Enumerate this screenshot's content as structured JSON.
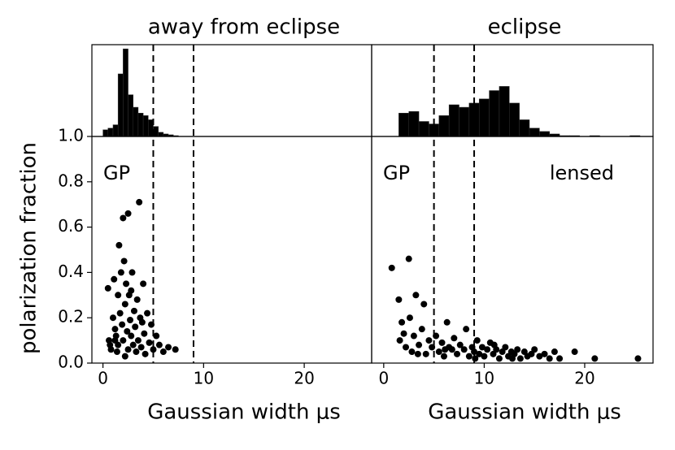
{
  "chart_data": [
    {
      "type": "scatter",
      "title": "away from eclipse",
      "xlabel": "Gaussian width μs",
      "ylabel": "polarization fraction",
      "xlim": [
        -1.1,
        26.7
      ],
      "xticks": [
        0,
        10,
        20
      ],
      "ylim": [
        0,
        1
      ],
      "yticks": [
        0.0,
        0.2,
        0.4,
        0.6,
        0.8,
        1.0
      ],
      "vlines": [
        5,
        9
      ],
      "annotations": [
        "GP"
      ],
      "color": "#000000",
      "histogram": {
        "bins": [
          0,
          0.5,
          1,
          1.5,
          2,
          2.5,
          3,
          3.5,
          4,
          4.5,
          5,
          5.5,
          6,
          6.5,
          7,
          7.5
        ],
        "counts": [
          8,
          10,
          14,
          75,
          105,
          50,
          35,
          28,
          25,
          20,
          12,
          5,
          3,
          2,
          1
        ],
        "ylim": [
          0,
          110
        ]
      },
      "x": [
        0.5,
        0.6,
        0.7,
        0.8,
        1.0,
        1.1,
        1.2,
        1.3,
        1.4,
        1.5,
        1.5,
        1.6,
        1.7,
        1.8,
        1.9,
        2.0,
        2.0,
        2.1,
        2.2,
        2.2,
        2.3,
        2.4,
        2.5,
        2.5,
        2.6,
        2.7,
        2.8,
        2.9,
        3.0,
        3.1,
        3.2,
        3.3,
        3.4,
        3.5,
        3.6,
        3.7,
        3.8,
        4.0,
        4.1,
        4.2,
        4.4,
        4.6,
        4.8,
        5.0,
        5.3,
        5.6,
        6.0,
        6.5,
        7.2,
        1.2,
        2.8,
        3.9
      ],
      "values": [
        0.33,
        0.1,
        0.08,
        0.06,
        0.2,
        0.37,
        0.15,
        0.12,
        0.05,
        0.3,
        0.08,
        0.52,
        0.22,
        0.4,
        0.17,
        0.64,
        0.1,
        0.45,
        0.26,
        0.03,
        0.35,
        0.14,
        0.66,
        0.06,
        0.3,
        0.19,
        0.12,
        0.4,
        0.08,
        0.23,
        0.16,
        0.05,
        0.28,
        0.1,
        0.71,
        0.2,
        0.07,
        0.35,
        0.13,
        0.04,
        0.22,
        0.09,
        0.17,
        0.06,
        0.12,
        0.08,
        0.05,
        0.07,
        0.06,
        0.1,
        0.32,
        0.18
      ]
    },
    {
      "type": "scatter",
      "title": "eclipse",
      "xlabel": "Gaussian width μs",
      "xlim": [
        -1.2,
        26.8
      ],
      "xticks": [
        0,
        10,
        20
      ],
      "ylim": [
        0,
        1
      ],
      "vlines": [
        5,
        9
      ],
      "annotations": [
        "GP",
        "lensed"
      ],
      "color": "#000000",
      "histogram": {
        "bins": [
          1.5,
          2.5,
          3.5,
          4.5,
          5.5,
          6.5,
          7.5,
          8.5,
          9.5,
          10.5,
          11.5,
          12.5,
          13.5,
          14.5,
          15.5,
          16.5,
          17.5,
          18.5,
          19.5,
          20.5,
          21.5,
          22.5,
          23.5,
          24.5,
          25.5
        ],
        "counts": [
          28,
          30,
          18,
          15,
          25,
          38,
          35,
          40,
          45,
          55,
          60,
          40,
          20,
          10,
          6,
          3,
          1,
          1,
          0,
          1,
          0,
          0,
          0,
          1
        ],
        "ylim": [
          0,
          110
        ]
      },
      "x": [
        0.8,
        1.5,
        1.6,
        1.8,
        2.0,
        2.2,
        2.5,
        2.6,
        2.8,
        3.0,
        3.2,
        3.5,
        3.8,
        4.0,
        4.2,
        4.5,
        4.8,
        5.2,
        5.5,
        5.8,
        6.0,
        6.3,
        6.5,
        6.8,
        7.0,
        7.3,
        7.6,
        8.0,
        8.2,
        8.5,
        8.8,
        9.0,
        9.3,
        9.5,
        9.8,
        10.0,
        10.3,
        10.6,
        10.9,
        11.2,
        11.5,
        11.8,
        12.1,
        12.4,
        12.7,
        13.0,
        13.3,
        13.6,
        14.0,
        14.3,
        14.7,
        15.0,
        15.5,
        16.0,
        16.5,
        17.0,
        17.5,
        19.0,
        21.0,
        25.3,
        9.1,
        11.0,
        12.8,
        6.1,
        3.4
      ],
      "values": [
        0.42,
        0.28,
        0.1,
        0.18,
        0.13,
        0.07,
        0.46,
        0.2,
        0.05,
        0.12,
        0.3,
        0.08,
        0.15,
        0.26,
        0.04,
        0.1,
        0.07,
        0.12,
        0.05,
        0.09,
        0.03,
        0.18,
        0.07,
        0.06,
        0.11,
        0.04,
        0.08,
        0.06,
        0.15,
        0.03,
        0.07,
        0.05,
        0.1,
        0.04,
        0.07,
        0.03,
        0.06,
        0.09,
        0.04,
        0.06,
        0.02,
        0.05,
        0.07,
        0.03,
        0.05,
        0.04,
        0.06,
        0.02,
        0.05,
        0.03,
        0.04,
        0.06,
        0.03,
        0.04,
        0.02,
        0.05,
        0.02,
        0.05,
        0.02,
        0.02,
        0.02,
        0.08,
        0.02,
        0.06,
        0.04
      ]
    }
  ]
}
